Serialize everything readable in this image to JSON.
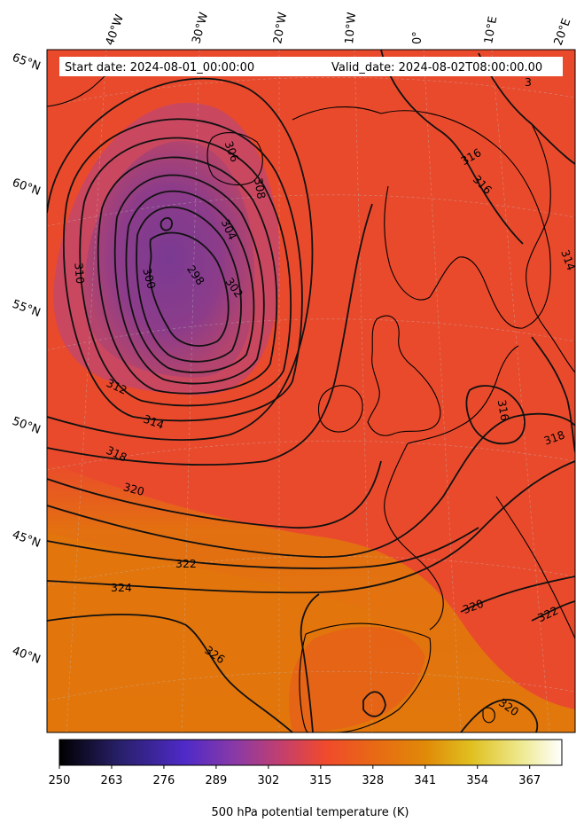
{
  "header": {
    "start_date": "Start date: 2024-08-01_00:00:00",
    "valid_date": "Valid_date: 2024-08-02T08:00:00.00"
  },
  "lon_labels": [
    "40°W",
    "30°W",
    "20°W",
    "10°W",
    "0°",
    "10°E",
    "20°E"
  ],
  "lat_labels": [
    "65°N",
    "60°N",
    "55°N",
    "50°N",
    "45°N",
    "40°N"
  ],
  "contour_labels": [
    "298",
    "300",
    "302",
    "304",
    "306",
    "308",
    "310",
    "312",
    "314",
    "316",
    "316",
    "314",
    "316",
    "318",
    "318",
    "320",
    "320",
    "322",
    "322",
    "324",
    "326",
    "320",
    "3"
  ],
  "colorbar": {
    "ticks": [
      "250",
      "263",
      "276",
      "289",
      "302",
      "315",
      "328",
      "341",
      "354",
      "367"
    ],
    "label": "500 hPa potential temperature (K)",
    "colors": [
      "#000000",
      "#28206a",
      "#4f2ac8",
      "#8a3aa6",
      "#c84068",
      "#f04a2c",
      "#e86a14",
      "#e08a08",
      "#e0c020",
      "#eeea90",
      "#ffffff"
    ]
  },
  "field_colors": {
    "low_center": "#7a3a92",
    "ring": "#b2446e",
    "main": "#ea4a2c",
    "warm": "#e2760c"
  }
}
